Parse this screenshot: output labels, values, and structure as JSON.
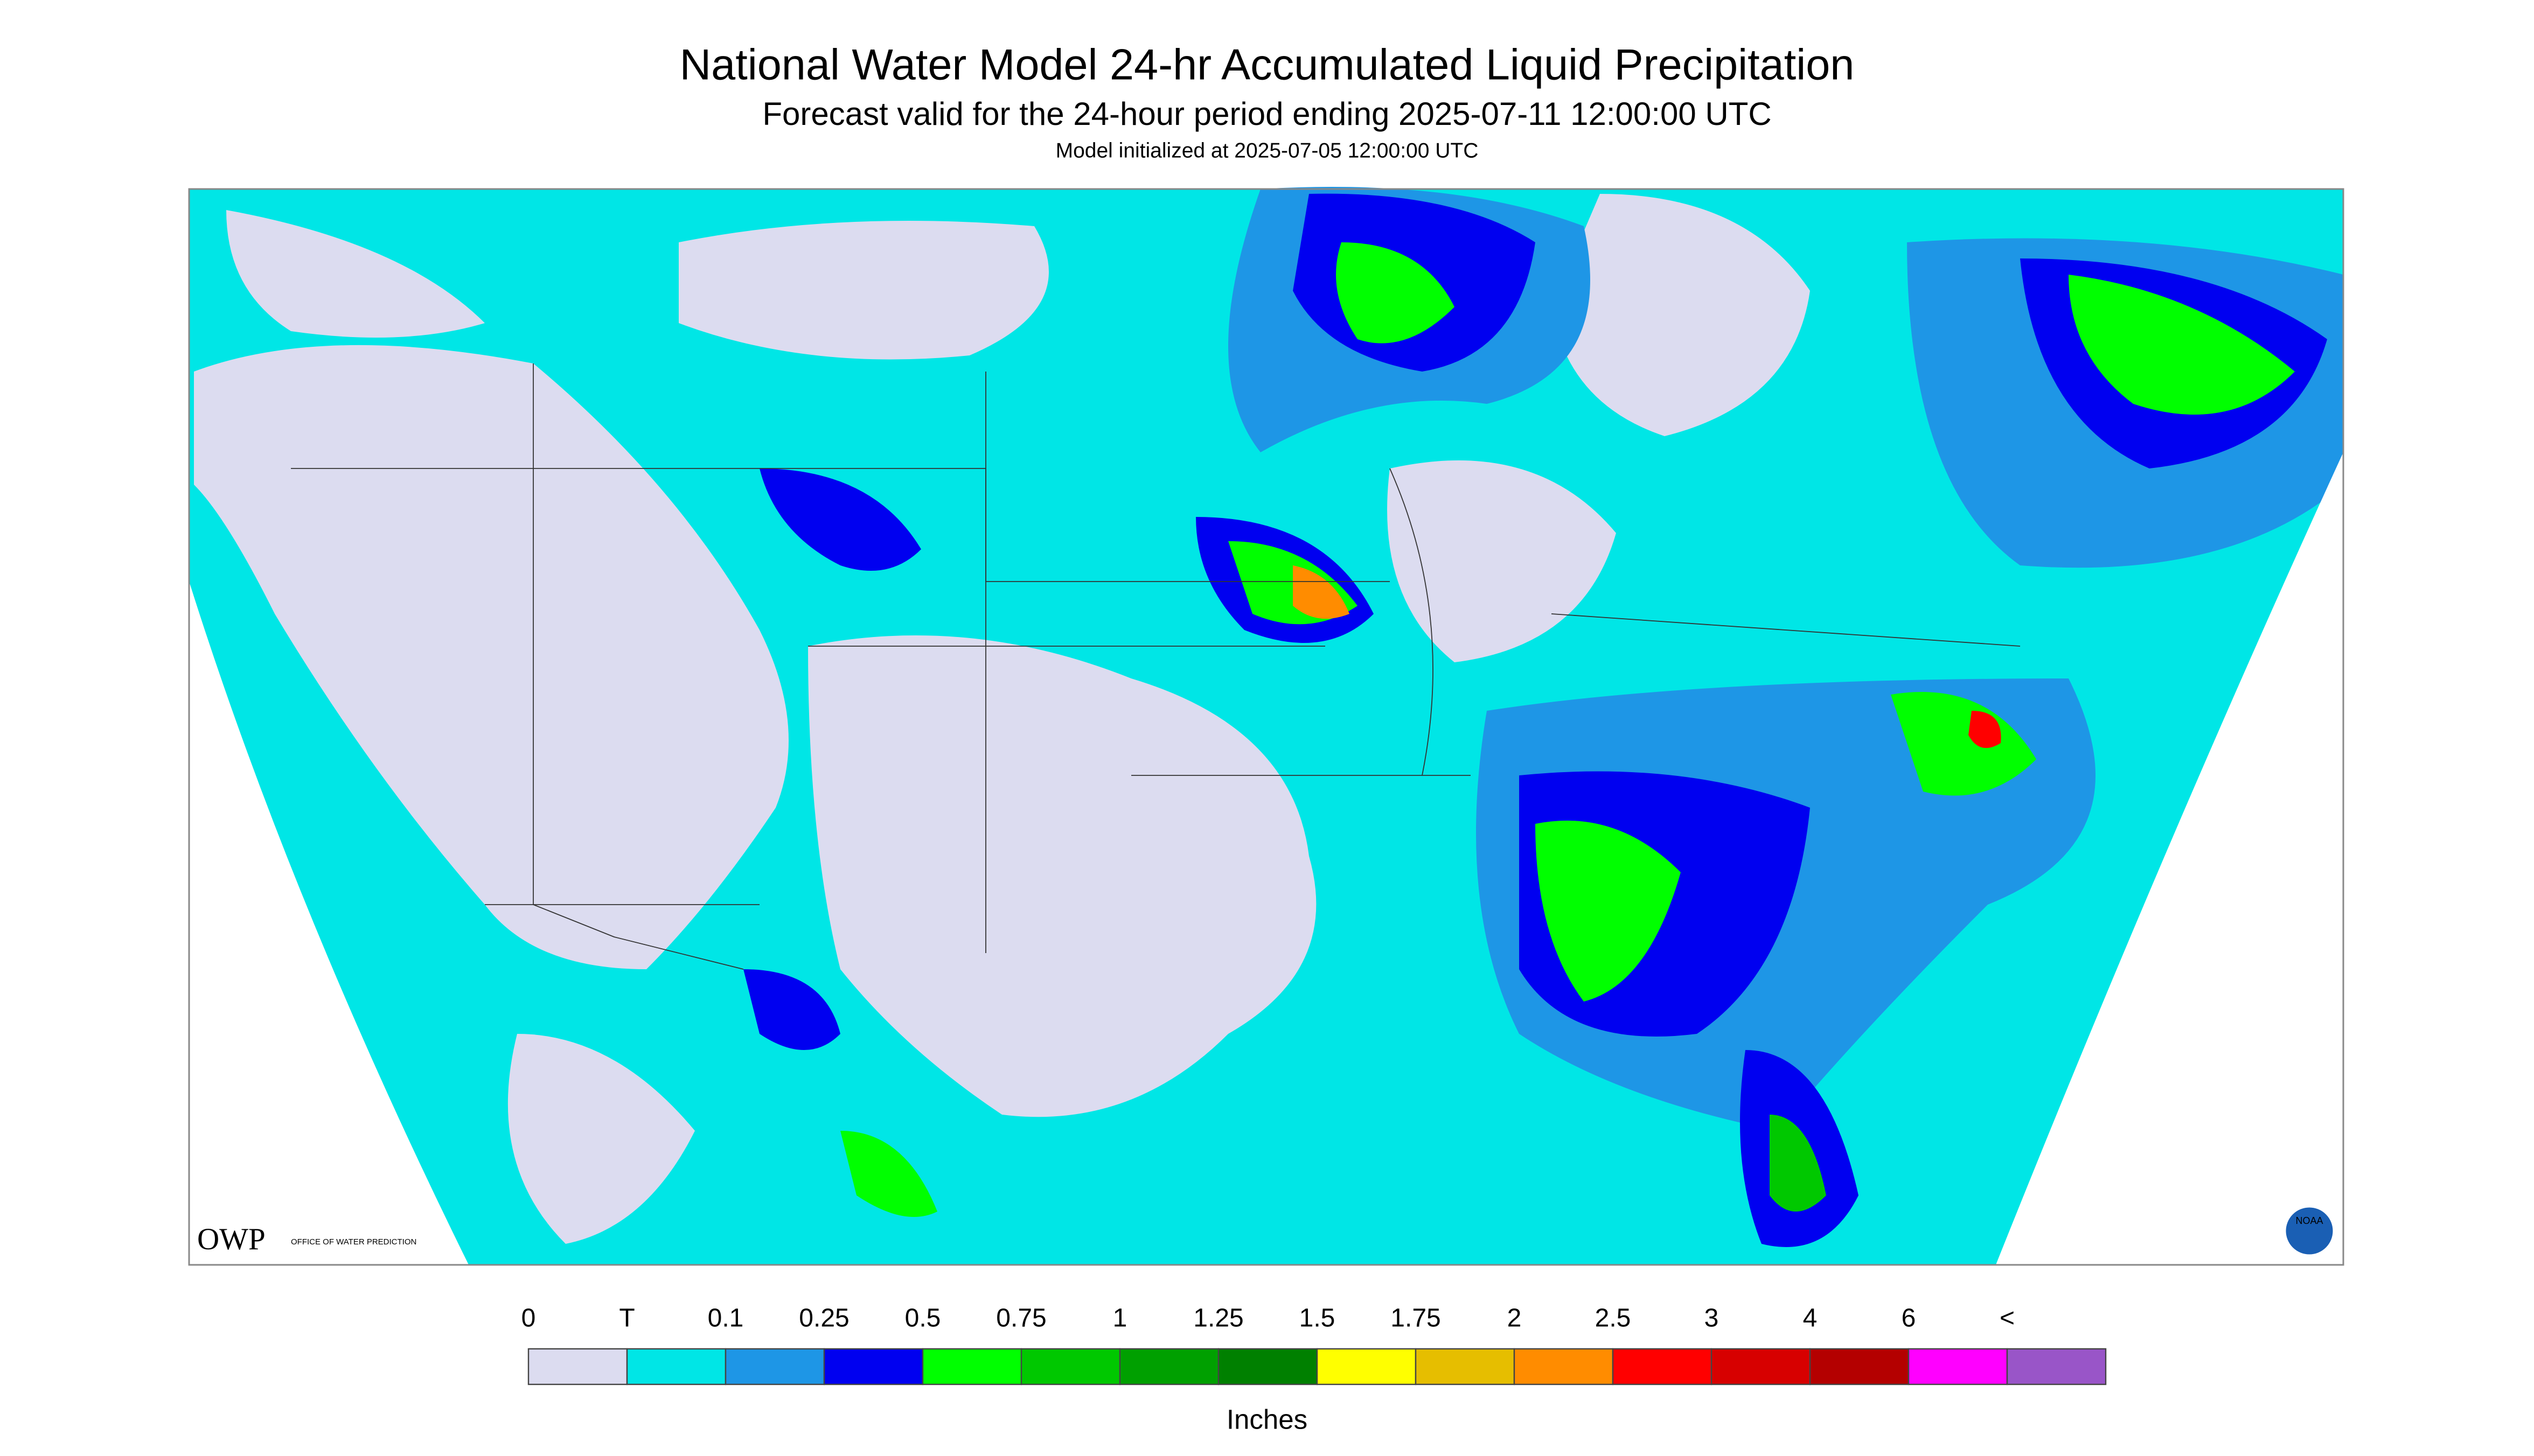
{
  "header": {
    "title": "National Water Model 24-hr Accumulated Liquid Precipitation",
    "subtitle": "Forecast valid for the 24-hour period ending 2025-07-11 12:00:00 UTC",
    "init": "Model initialized at 2025-07-05 12:00:00 UTC"
  },
  "logos": {
    "owp": "OWP",
    "owp_text": "OFFICE OF WATER PREDICTION",
    "noaa": "NOAA"
  },
  "legend": {
    "labels": [
      "0",
      "T",
      "0.1",
      "0.25",
      "0.5",
      "0.75",
      "1",
      "1.25",
      "1.5",
      "1.75",
      "2",
      "2.5",
      "3",
      "4",
      "6",
      "<"
    ],
    "colors": [
      "#dcdcf0",
      "#00e6e6",
      "#1e96e6",
      "#0000f0",
      "#00ff00",
      "#00c800",
      "#00a000",
      "#008000",
      "#ffff00",
      "#e6be00",
      "#ff8c00",
      "#ff0000",
      "#d70000",
      "#b40000",
      "#ff00ff",
      "#9955c8"
    ],
    "unit": "Inches"
  }
}
